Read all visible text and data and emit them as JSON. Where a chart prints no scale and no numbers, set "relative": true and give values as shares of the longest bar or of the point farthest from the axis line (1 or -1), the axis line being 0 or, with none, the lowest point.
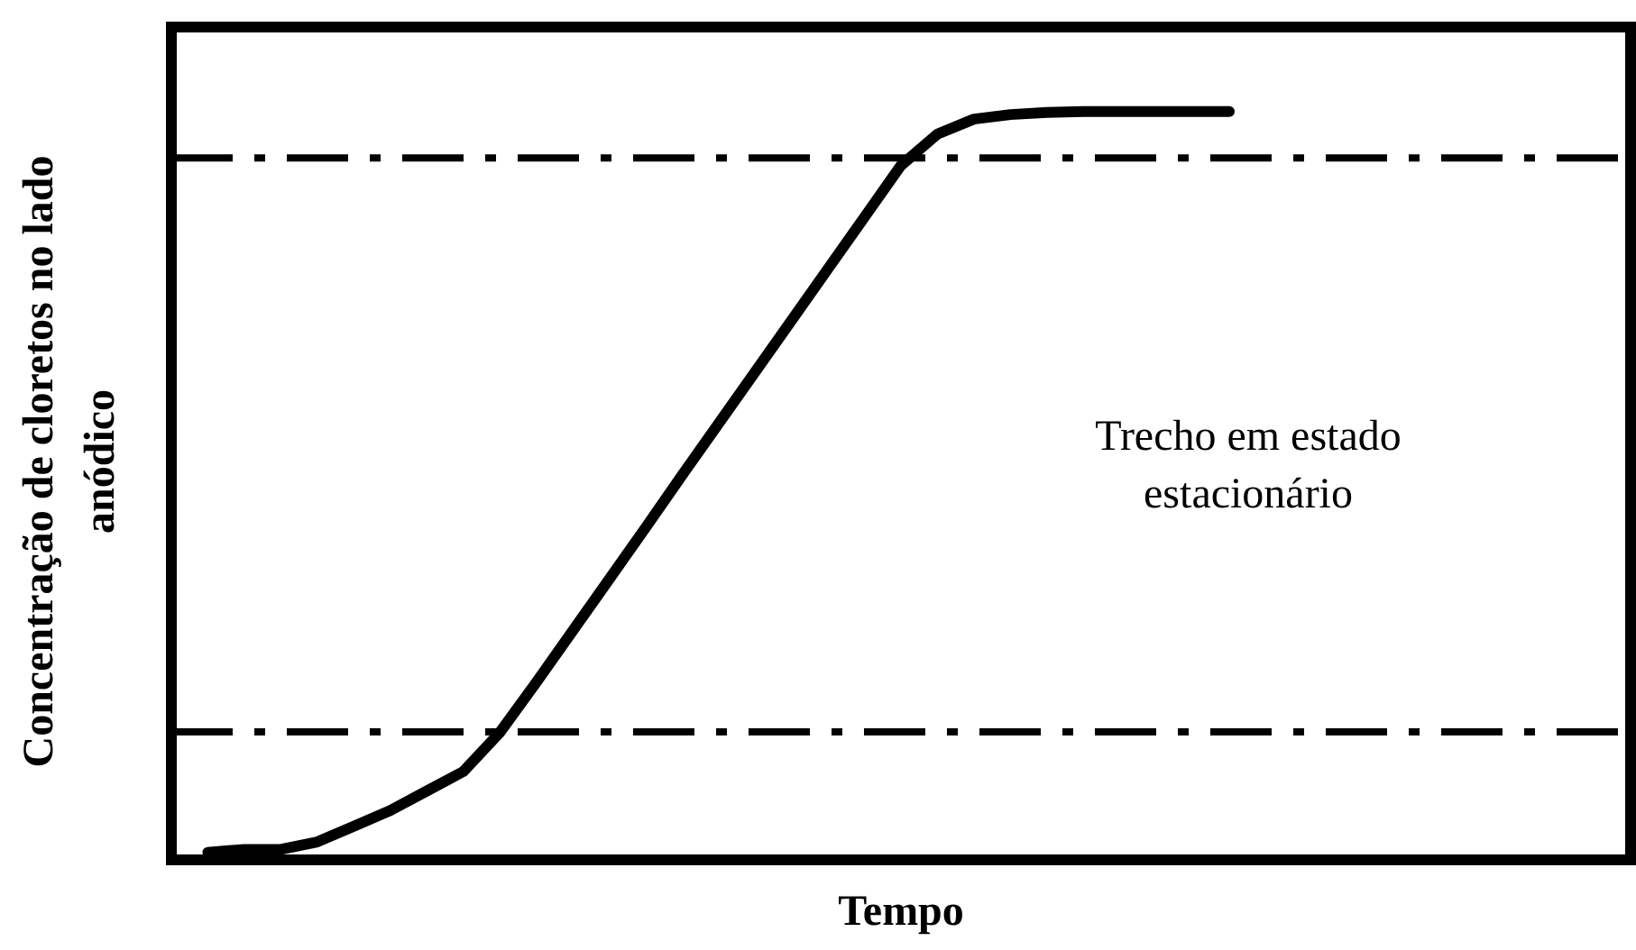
{
  "chart_data": {
    "type": "line",
    "relative": true,
    "xlabel": "Tempo",
    "ylabel": "Concentração de cloretos no lado anódico",
    "categories": [
      null,
      null,
      null,
      null,
      null,
      null,
      null,
      null,
      null,
      null,
      null,
      null,
      null,
      null,
      null,
      null,
      null,
      null,
      null,
      null,
      null,
      null,
      null,
      null,
      null,
      null,
      null,
      null,
      null,
      null,
      null,
      null,
      null,
      null,
      null,
      null,
      null,
      null,
      null,
      null,
      null
    ],
    "series": [
      {
        "color": "#000000",
        "values": [
          null,
          0.01,
          0.014,
          0.014,
          0.024,
          0.045,
          0.066,
          0.092,
          0.118,
          0.17,
          0.237,
          0.306,
          0.375,
          0.444,
          0.514,
          0.583,
          0.652,
          0.721,
          0.79,
          0.859,
          0.928,
          0.97,
          0.99,
          0.996,
          0.999,
          1,
          1,
          1,
          1,
          1,
          null,
          null,
          null,
          null,
          null,
          null,
          null,
          null,
          null,
          null,
          null
        ]
      }
    ],
    "ref_lines": [
      {
        "axis": "y",
        "value": 0.938,
        "color": "#000000",
        "line_style": "dashed"
      },
      {
        "axis": "y",
        "value": 0.171,
        "color": "#000000",
        "line_style": "dashed"
      }
    ],
    "annotations": [
      "Trecho em estado estacionário"
    ],
    "grid": false,
    "legend": false,
    "marker": "none",
    "line_style": "solid"
  }
}
